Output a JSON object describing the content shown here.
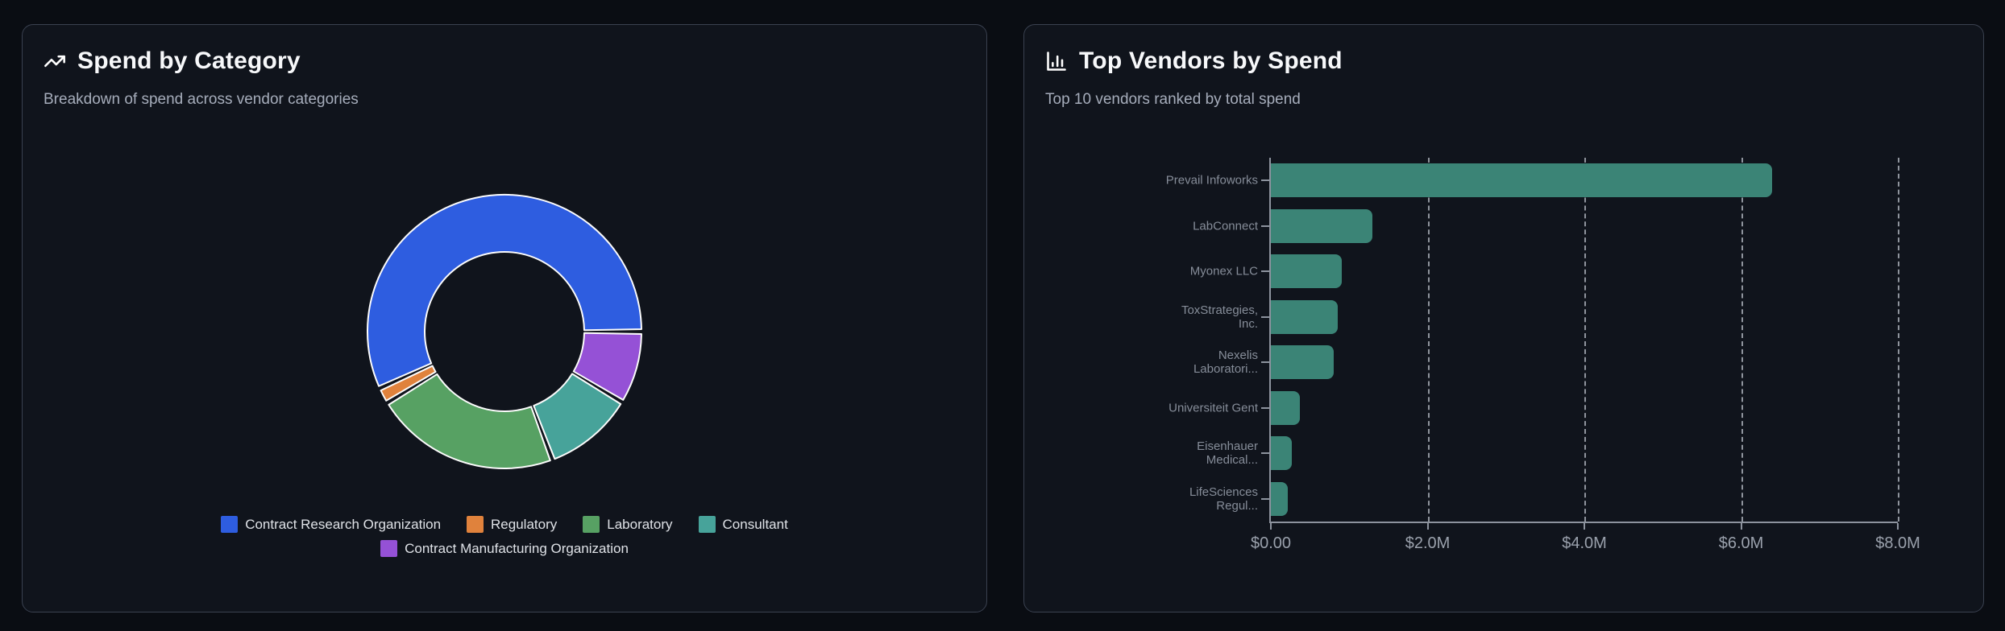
{
  "colors": {
    "page_background": "#0a0d13",
    "card_background": "#10141c",
    "card_border": "#3a4150",
    "axis": "#8d939e",
    "bar": "#3b8476",
    "donut_stroke": "#fcfcfc"
  },
  "cards": [
    {
      "icon": "trending-up-icon",
      "title": "Spend by Category",
      "subtitle": "Breakdown of spend across vendor categories"
    },
    {
      "icon": "bar-chart-icon",
      "title": "Top Vendors by Spend",
      "subtitle": "Top 10 vendors ranked by total spend"
    }
  ],
  "chart_data": [
    {
      "type": "pie",
      "title": "Spend by Category",
      "subtitle": "Breakdown of spend across vendor categories",
      "donut": true,
      "inner_radius_ratio": 0.58,
      "start_angle_deg": 0,
      "direction": "counterclockwise",
      "legend_position": "bottom",
      "segments": [
        {
          "label": "Contract Research Organization",
          "percent": 56.8,
          "color": "#2e5de0"
        },
        {
          "label": "Regulatory",
          "percent": 1.9,
          "color": "#e0823c"
        },
        {
          "label": "Laboratory",
          "percent": 22.0,
          "color": "#57a163"
        },
        {
          "label": "Consultant",
          "percent": 10.7,
          "color": "#47a39a"
        },
        {
          "label": "Contract Manufacturing Organization",
          "percent": 8.6,
          "color": "#9551d6"
        }
      ]
    },
    {
      "type": "bar",
      "orientation": "horizontal",
      "title": "Top Vendors by Spend",
      "subtitle": "Top 10 vendors ranked by total spend",
      "grid": "dashed-vertical",
      "bar_color": "#3b8476",
      "xlabel": "",
      "ylabel": "",
      "x_max_millions": 8,
      "x_ticks": [
        {
          "label": "$0.00",
          "value": 0
        },
        {
          "label": "$2.0M",
          "value": 2
        },
        {
          "label": "$4.0M",
          "value": 4
        },
        {
          "label": "$6.0M",
          "value": 6
        },
        {
          "label": "$8.0M",
          "value": 8
        }
      ],
      "bars": [
        {
          "label_lines": [
            "Prevail Infoworks"
          ],
          "value_millions": 6.4
        },
        {
          "label_lines": [
            "LabConnect"
          ],
          "value_millions": 1.3
        },
        {
          "label_lines": [
            "Myonex LLC"
          ],
          "value_millions": 0.9
        },
        {
          "label_lines": [
            "ToxStrategies,",
            "Inc."
          ],
          "value_millions": 0.85
        },
        {
          "label_lines": [
            "Nexelis",
            "Laboratori..."
          ],
          "value_millions": 0.8
        },
        {
          "label_lines": [
            "Universiteit Gent"
          ],
          "value_millions": 0.37
        },
        {
          "label_lines": [
            "Eisenhauer",
            "Medical..."
          ],
          "value_millions": 0.27
        },
        {
          "label_lines": [
            "LifeSciences",
            "Regul..."
          ],
          "value_millions": 0.22
        }
      ]
    }
  ]
}
